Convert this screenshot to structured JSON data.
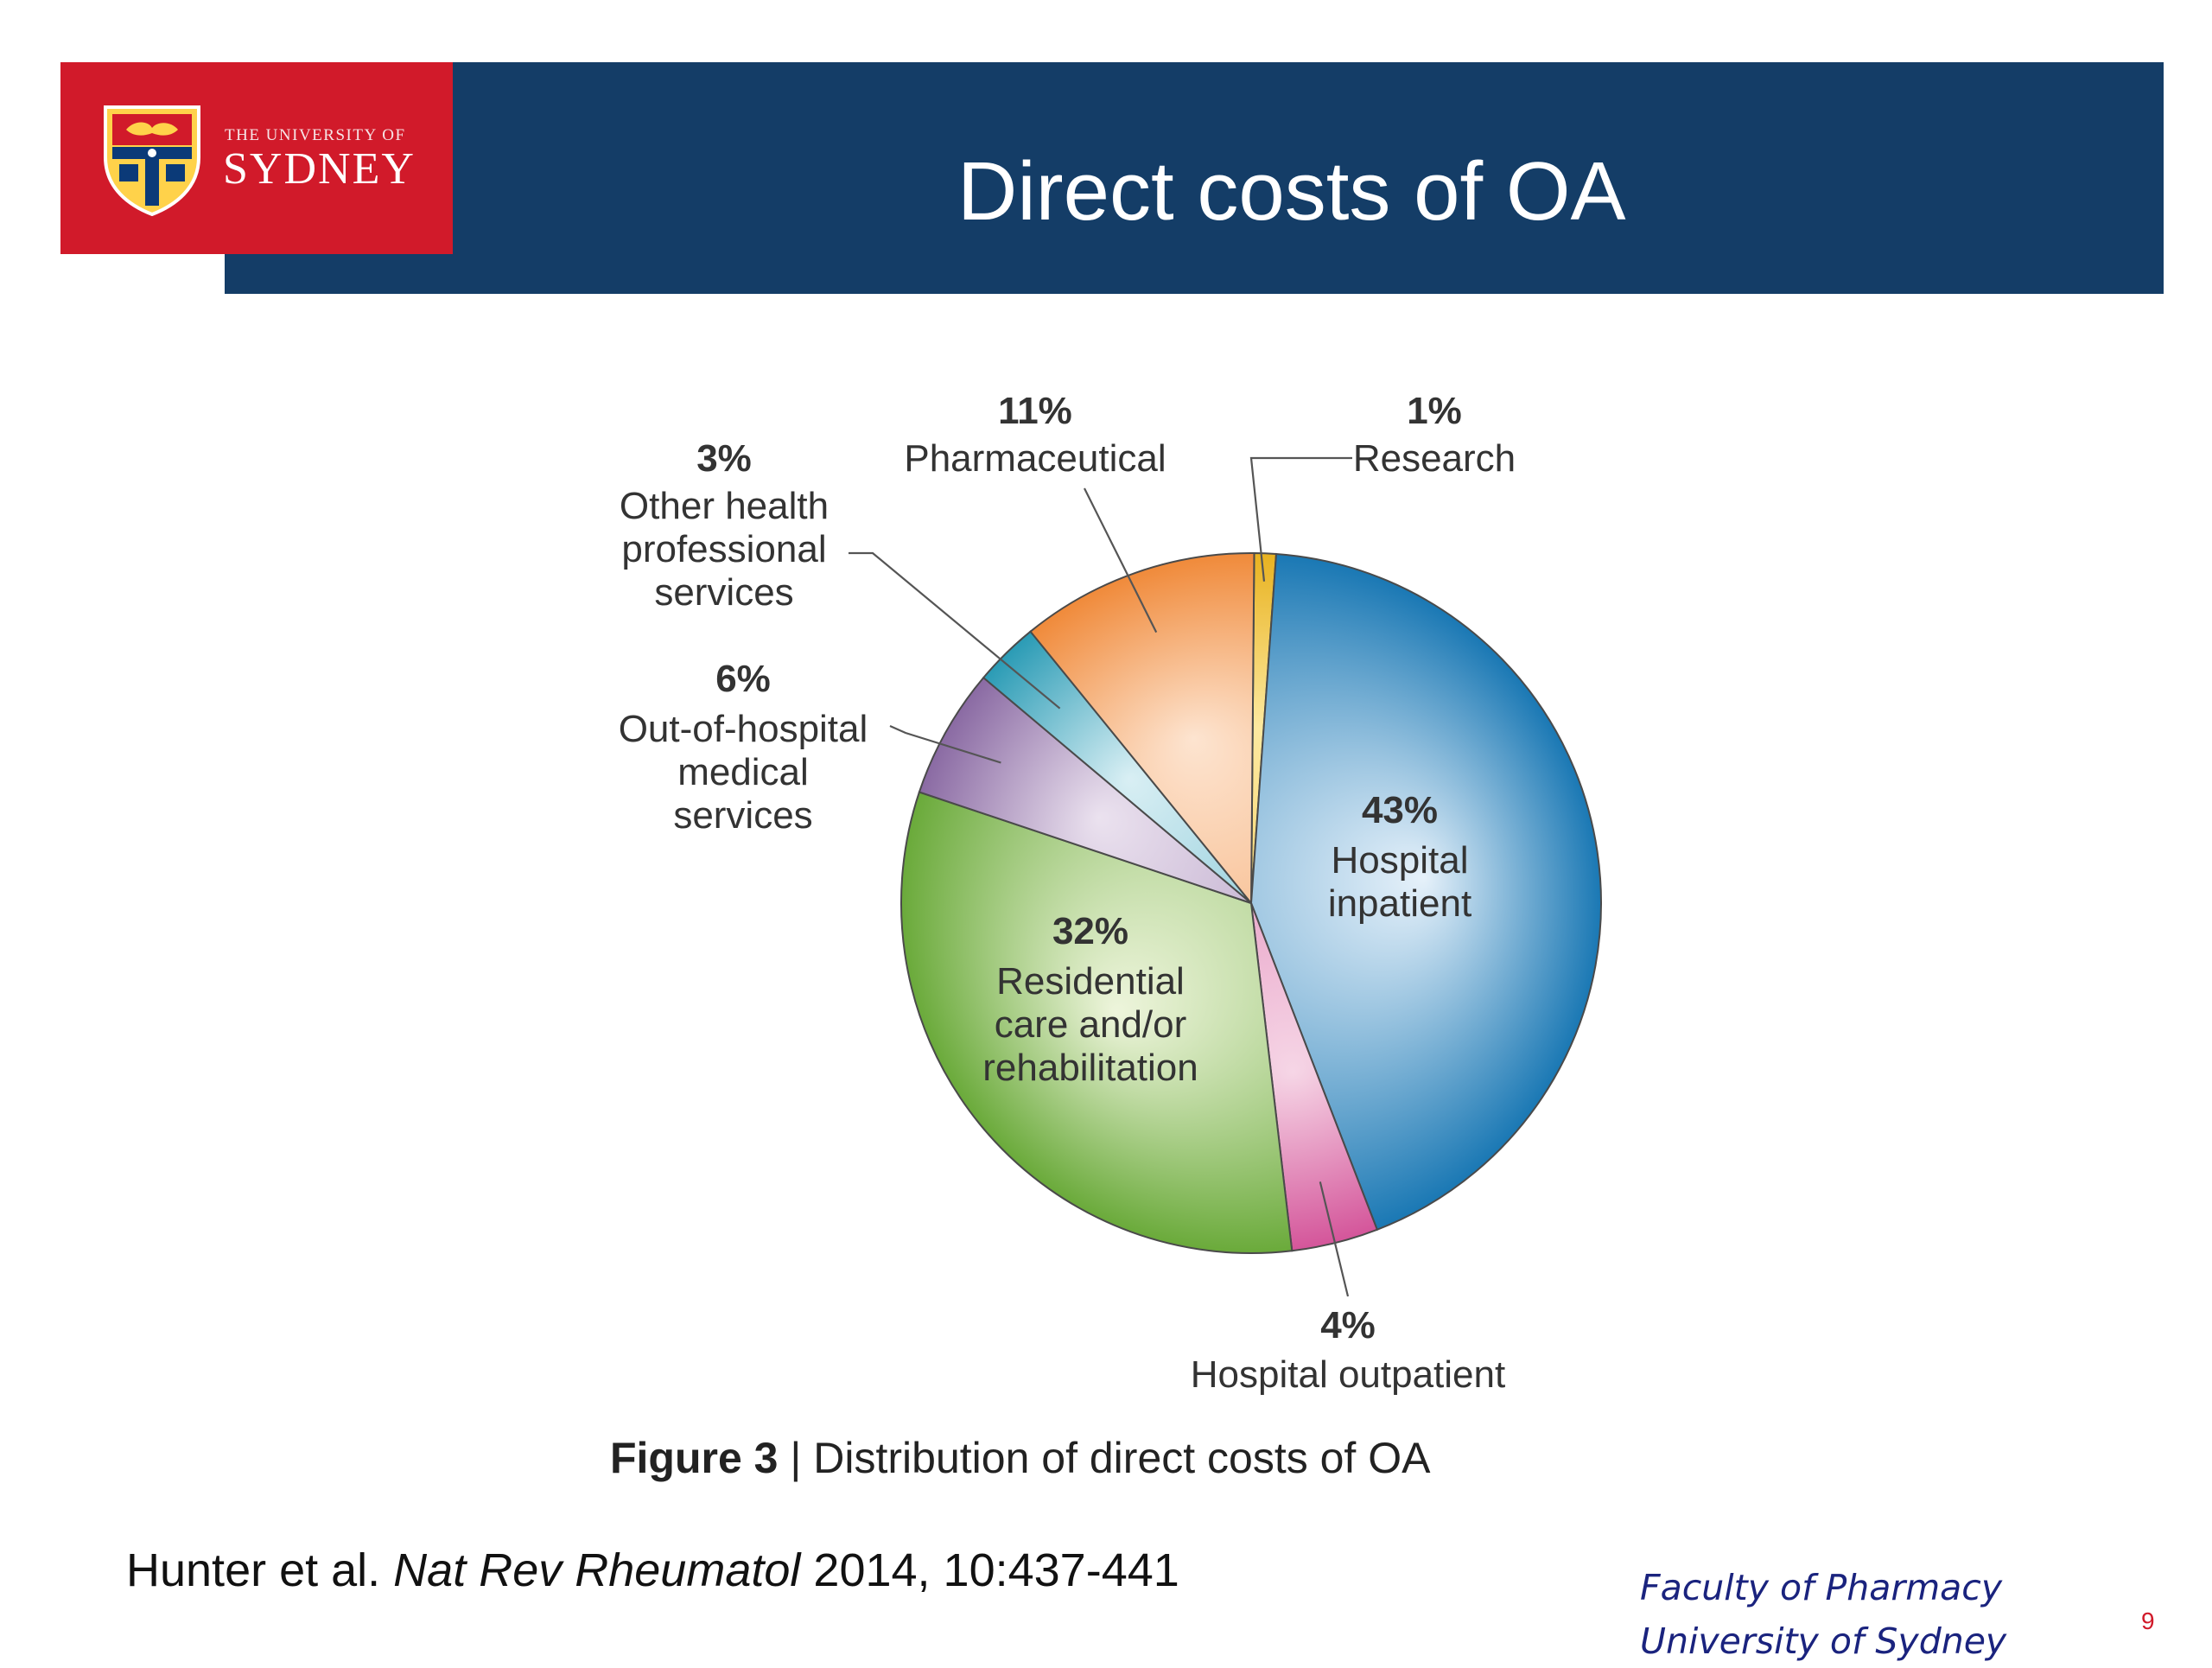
{
  "header": {
    "title": "Direct costs of OA",
    "logo_line1": "THE UNIVERSITY OF",
    "logo_line2": "SYDNEY"
  },
  "caption": {
    "figure_label": "Figure 3",
    "separator": "|",
    "text": "Distribution of direct costs of OA"
  },
  "citation": {
    "authors": "Hunter et al.",
    "journal": "Nat Rev Rheumatol",
    "details": "2014, 10:437-441"
  },
  "footer": {
    "faculty": "Faculty of Pharmacy",
    "university": "University of Sydney",
    "slide_number": "9"
  },
  "chart_data": {
    "type": "pie",
    "title": "",
    "slices": [
      {
        "label": "Research",
        "value": 1,
        "pct_label": "1%",
        "color_light": "#fde9a0",
        "color_dark": "#e8b220"
      },
      {
        "label": "Hospital inpatient",
        "value": 43,
        "pct_label": "43%",
        "color_light": "#e6f1fa",
        "color_dark": "#1a78b4"
      },
      {
        "label": "Hospital outpatient",
        "value": 4,
        "pct_label": "4%",
        "color_light": "#f6d6e6",
        "color_dark": "#d4559a"
      },
      {
        "label": "Residential care and/or rehabilitation",
        "value": 32,
        "pct_label": "32%",
        "color_light": "#eef5dc",
        "color_dark": "#6aaa3a"
      },
      {
        "label": "Out-of-hospital medical services",
        "value": 6,
        "pct_label": "6%",
        "color_light": "#ebe2ef",
        "color_dark": "#8a6aa3"
      },
      {
        "label": "Other health professional services",
        "value": 3,
        "pct_label": "3%",
        "color_light": "#d9eff4",
        "color_dark": "#2a9bb5"
      },
      {
        "label": "Pharmaceutical",
        "value": 11,
        "pct_label": "11%",
        "color_light": "#fde4d0",
        "color_dark": "#f08a3a"
      }
    ],
    "label_lines": {
      "Research": [
        "Research"
      ],
      "Hospital inpatient": [
        "Hospital",
        "inpatient"
      ],
      "Hospital outpatient": [
        "Hospital outpatient"
      ],
      "Residential care and/or rehabilitation": [
        "Residential",
        "care and/or",
        "rehabilitation"
      ],
      "Out-of-hospital medical services": [
        "Out-of-hospital",
        "medical",
        "services"
      ],
      "Other health professional services": [
        "Other health",
        "professional",
        "services"
      ],
      "Pharmaceutical": [
        "Pharmaceutical"
      ]
    }
  }
}
